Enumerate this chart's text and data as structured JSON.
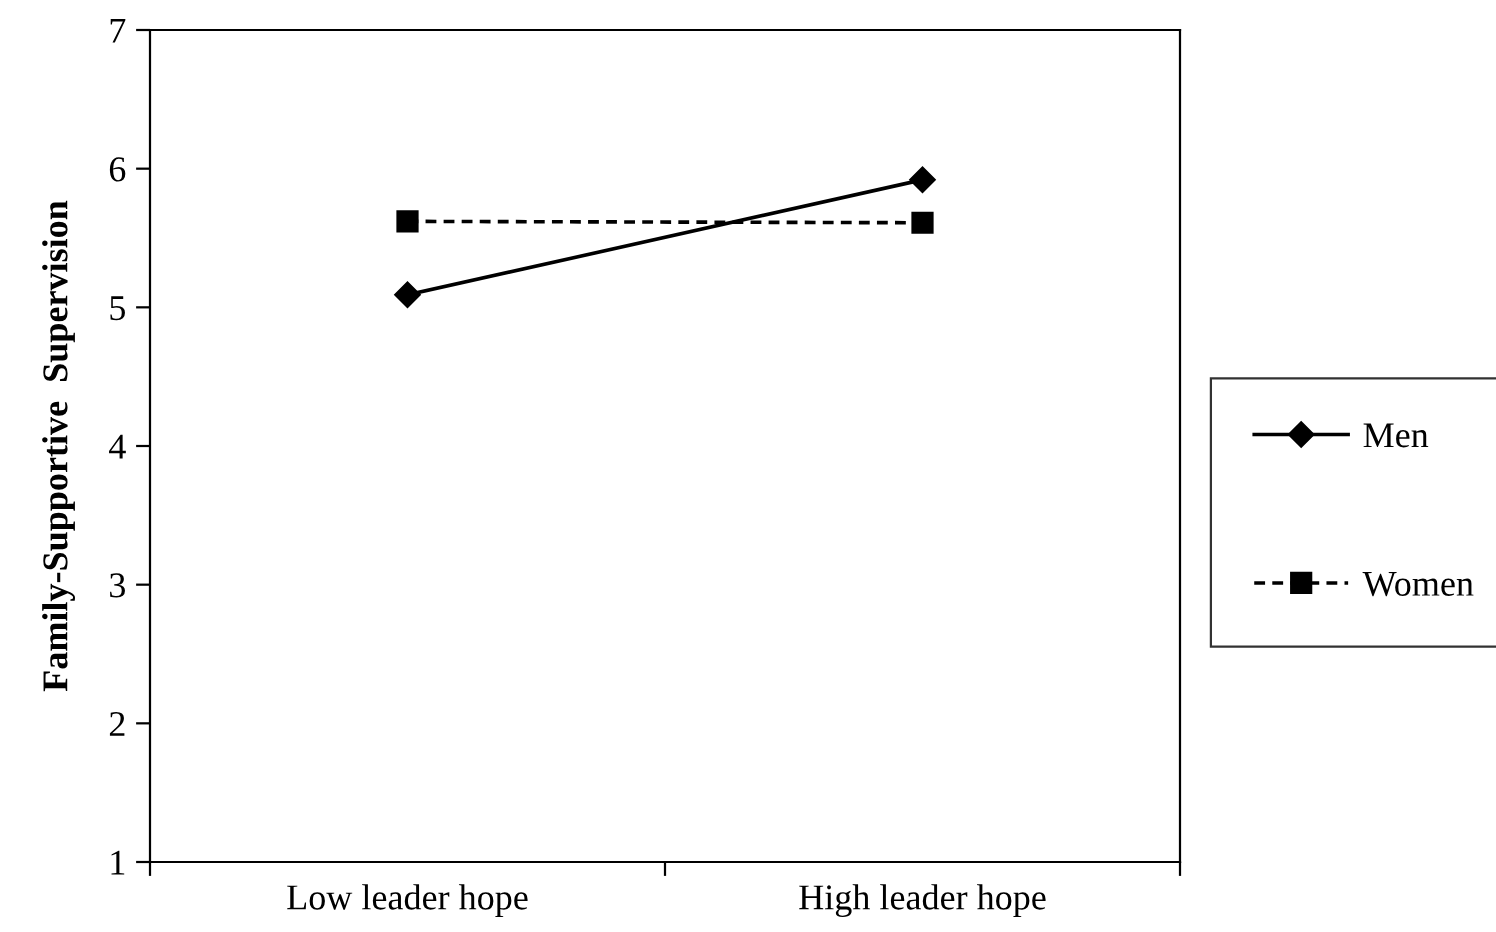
{
  "chart_data": {
    "type": "line",
    "ylabel": "Family-Supportive  Supervision",
    "categories": [
      "Low leader hope",
      "High leader hope"
    ],
    "series": [
      {
        "name": "Men",
        "color": "#000000",
        "values": [
          5.09,
          5.92
        ],
        "marker": "diamond",
        "line_style": "solid"
      },
      {
        "name": "Women",
        "color": "#000000",
        "values": [
          5.62,
          5.61
        ],
        "marker": "square",
        "line_style": "dashed"
      }
    ],
    "ylim": [
      1,
      7
    ],
    "yticks": [
      1,
      2,
      3,
      4,
      5,
      6,
      7
    ],
    "grid": false,
    "legend": "right"
  }
}
